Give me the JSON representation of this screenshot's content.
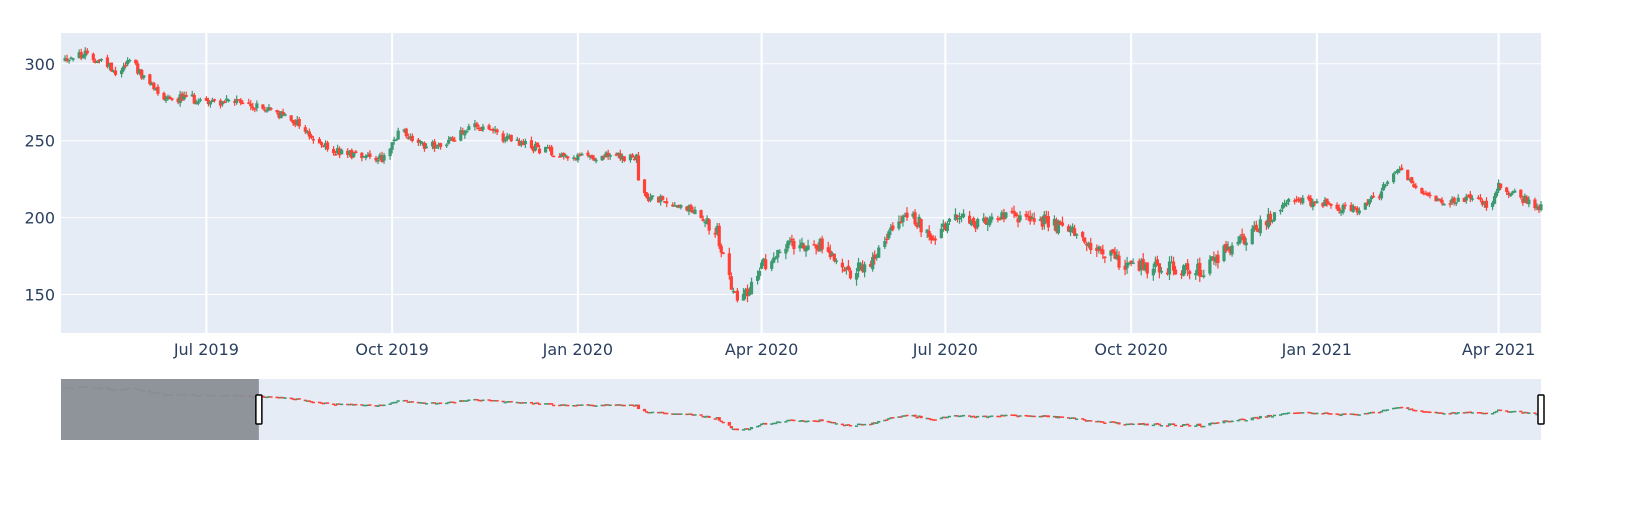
{
  "chart_data": {
    "type": "candlestick",
    "title": "",
    "xlabel": "",
    "ylabel": "",
    "x_range": [
      "2019-04-20",
      "2021-04-22"
    ],
    "y_range": [
      125,
      320
    ],
    "y_ticks": [
      150,
      200,
      250,
      300
    ],
    "x_ticks": [
      {
        "date": "2019-07-01",
        "label": "Jul 2019"
      },
      {
        "date": "2019-10-01",
        "label": "Oct 2019"
      },
      {
        "date": "2020-01-01",
        "label": "Jan 2020"
      },
      {
        "date": "2020-04-01",
        "label": "Apr 2020"
      },
      {
        "date": "2020-07-01",
        "label": "Jul 2020"
      },
      {
        "date": "2020-10-01",
        "label": "Oct 2020"
      },
      {
        "date": "2021-01-01",
        "label": "Jan 2021"
      },
      {
        "date": "2021-04-01",
        "label": "Apr 2021"
      }
    ],
    "grid": true,
    "colors": {
      "increasing": "#3d9970",
      "decreasing": "#ff4136",
      "plot_bg": "#e5ecf6",
      "grid": "#ffffff",
      "rangeslider_mask": "#8a8e95"
    },
    "rangeslider": {
      "visible": true,
      "selected_range": [
        "2019-07-27",
        "2021-04-22"
      ]
    },
    "anchors": [
      [
        "2019-04-20",
        303
      ],
      [
        "2019-05-01",
        306
      ],
      [
        "2019-05-12",
        301
      ],
      [
        "2019-05-18",
        294
      ],
      [
        "2019-05-25",
        305
      ],
      [
        "2019-05-30",
        291
      ],
      [
        "2019-06-10",
        279
      ],
      [
        "2019-07-01",
        276
      ],
      [
        "2019-07-15",
        275
      ],
      [
        "2019-08-01",
        270
      ],
      [
        "2019-08-15",
        262
      ],
      [
        "2019-08-25",
        248
      ],
      [
        "2019-09-05",
        242
      ],
      [
        "2019-09-20",
        241
      ],
      [
        "2019-09-28",
        238
      ],
      [
        "2019-10-05",
        257
      ],
      [
        "2019-10-15",
        247
      ],
      [
        "2019-10-28",
        248
      ],
      [
        "2019-11-08",
        260
      ],
      [
        "2019-11-18",
        256
      ],
      [
        "2019-12-01",
        249
      ],
      [
        "2019-12-15",
        244
      ],
      [
        "2020-01-01",
        239
      ],
      [
        "2020-01-15",
        240
      ],
      [
        "2020-01-30",
        238
      ],
      [
        "2020-02-01",
        214
      ],
      [
        "2020-02-15",
        210
      ],
      [
        "2020-03-01",
        204
      ],
      [
        "2020-03-10",
        190
      ],
      [
        "2020-03-18",
        150
      ],
      [
        "2020-03-25",
        152
      ],
      [
        "2020-04-05",
        175
      ],
      [
        "2020-04-18",
        185
      ],
      [
        "2020-05-01",
        182
      ],
      [
        "2020-05-15",
        165
      ],
      [
        "2020-05-25",
        168
      ],
      [
        "2020-06-05",
        195
      ],
      [
        "2020-06-15",
        200
      ],
      [
        "2020-06-25",
        188
      ],
      [
        "2020-07-05",
        199
      ],
      [
        "2020-07-20",
        197
      ],
      [
        "2020-08-05",
        200
      ],
      [
        "2020-08-20",
        198
      ],
      [
        "2020-09-05",
        188
      ],
      [
        "2020-09-25",
        172
      ],
      [
        "2020-10-05",
        168
      ],
      [
        "2020-10-20",
        167
      ],
      [
        "2020-11-05",
        166
      ],
      [
        "2020-11-20",
        182
      ],
      [
        "2020-12-05",
        195
      ],
      [
        "2020-12-20",
        212
      ],
      [
        "2021-01-05",
        209
      ],
      [
        "2021-01-20",
        205
      ],
      [
        "2021-02-01",
        215
      ],
      [
        "2021-02-10",
        233
      ],
      [
        "2021-02-20",
        220
      ],
      [
        "2021-03-05",
        208
      ],
      [
        "2021-03-20",
        213
      ],
      [
        "2021-03-28",
        206
      ],
      [
        "2021-04-01",
        220
      ],
      [
        "2021-04-10",
        214
      ],
      [
        "2021-04-22",
        207
      ]
    ]
  }
}
